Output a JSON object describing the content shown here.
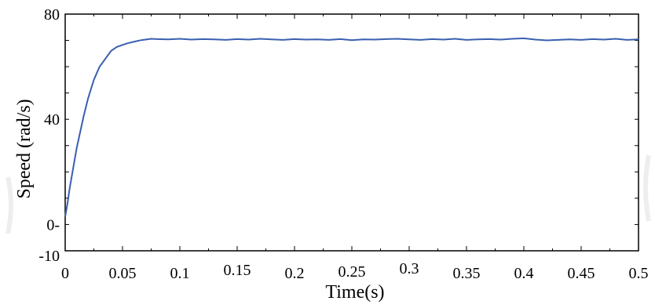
{
  "chart_data": {
    "type": "line",
    "title": "",
    "xlabel": "Time(s)",
    "ylabel": "Speed (rad/s)",
    "xlim": [
      0,
      0.5
    ],
    "ylim": [
      -10,
      80
    ],
    "grid": false,
    "x_ticks": [
      {
        "value": 0,
        "label": "0"
      },
      {
        "value": 0.05,
        "label": "0.05"
      },
      {
        "value": 0.1,
        "label": "0.1"
      },
      {
        "value": 0.15,
        "label": "0.15"
      },
      {
        "value": 0.2,
        "label": "0.2"
      },
      {
        "value": 0.25,
        "label": "0.25"
      },
      {
        "value": 0.3,
        "label": "0.3"
      },
      {
        "value": 0.35,
        "label": "0.35"
      },
      {
        "value": 0.4,
        "label": "0.4"
      },
      {
        "value": 0.45,
        "label": "0.45"
      },
      {
        "value": 0.5,
        "label": "0.5"
      }
    ],
    "y_ticks": [
      {
        "value": 80,
        "label": "80"
      },
      {
        "value": 40,
        "label": "40"
      },
      {
        "value": 0,
        "label": "0-"
      },
      {
        "value": -10,
        "label": "-10"
      }
    ],
    "series": [
      {
        "color": "#3a5fb0",
        "x": [
          0,
          0.002,
          0.004,
          0.006,
          0.008,
          0.01,
          0.013,
          0.016,
          0.02,
          0.025,
          0.03,
          0.035,
          0.04,
          0.045,
          0.05,
          0.055,
          0.06,
          0.065,
          0.07,
          0.075,
          0.08,
          0.09,
          0.1,
          0.11,
          0.12,
          0.13,
          0.14,
          0.15,
          0.16,
          0.17,
          0.18,
          0.19,
          0.2,
          0.21,
          0.22,
          0.23,
          0.24,
          0.25,
          0.26,
          0.27,
          0.28,
          0.29,
          0.3,
          0.31,
          0.32,
          0.33,
          0.34,
          0.35,
          0.36,
          0.37,
          0.38,
          0.39,
          0.4,
          0.41,
          0.42,
          0.43,
          0.44,
          0.45,
          0.46,
          0.47,
          0.48,
          0.49,
          0.5
        ],
        "y": [
          3,
          8,
          14,
          19,
          24,
          29,
          35,
          41,
          48,
          55,
          60,
          63,
          66,
          67.5,
          68.3,
          69,
          69.5,
          70,
          70.3,
          70.6,
          70.5,
          70.4,
          70.6,
          70.3,
          70.5,
          70.4,
          70.2,
          70.5,
          70.3,
          70.6,
          70.4,
          70.2,
          70.5,
          70.3,
          70.4,
          70.2,
          70.5,
          70.1,
          70.4,
          70.3,
          70.5,
          70.6,
          70.4,
          70.2,
          70.5,
          70.3,
          70.6,
          70.2,
          70.4,
          70.5,
          70.3,
          70.6,
          70.8,
          70.3,
          70.0,
          70.2,
          70.4,
          70.2,
          70.5,
          70.3,
          70.6,
          70.2,
          70.4
        ]
      }
    ]
  }
}
